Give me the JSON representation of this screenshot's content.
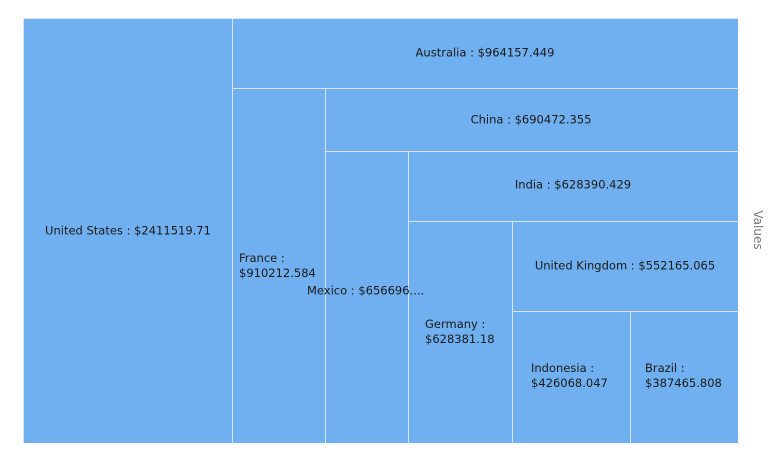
{
  "chart_data": {
    "type": "treemap",
    "ylabel": "Values",
    "fill_color": "#70b0f0",
    "items": [
      {
        "name": "United States",
        "value": 2411519.71,
        "label": "United States : $2411519.71"
      },
      {
        "name": "Australia",
        "value": 964157.449,
        "label": "Australia : $964157.449"
      },
      {
        "name": "France",
        "value": 910212.584,
        "label": "France :",
        "label2": "$910212.584"
      },
      {
        "name": "China",
        "value": 690472.355,
        "label": "China : $690472.355"
      },
      {
        "name": "Mexico",
        "value": 656696,
        "label": "Mexico : $656696...."
      },
      {
        "name": "India",
        "value": 628390.429,
        "label": "India : $628390.429"
      },
      {
        "name": "Germany",
        "value": 628381.18,
        "label": "Germany :",
        "label2": "$628381.18"
      },
      {
        "name": "United Kingdom",
        "value": 552165.065,
        "label": "United Kingdom : $552165.065"
      },
      {
        "name": "Indonesia",
        "value": 426068.047,
        "label": "Indonesia :",
        "label2": "$426068.047"
      },
      {
        "name": "Brazil",
        "value": 387465.808,
        "label": "Brazil :",
        "label2": "$387465.808"
      }
    ]
  }
}
